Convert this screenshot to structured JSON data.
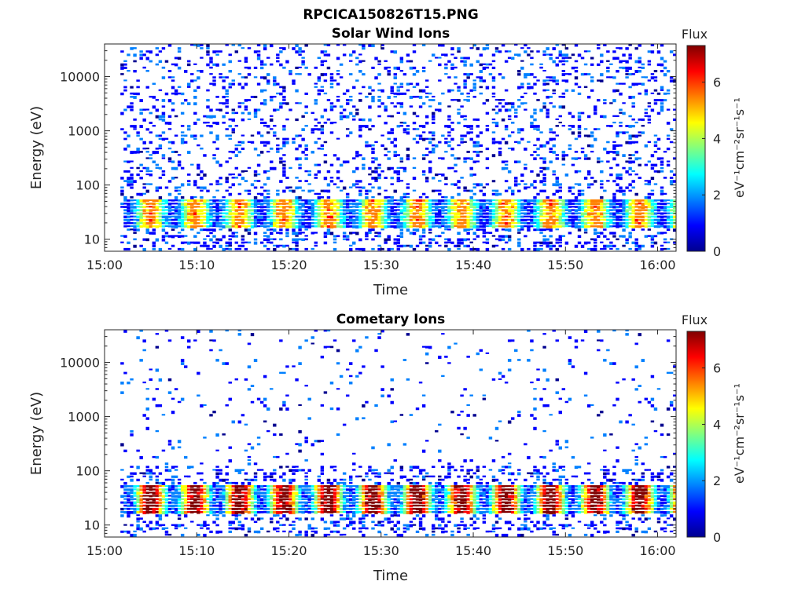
{
  "figure_title": "RPCICA150826T15.PNG",
  "colormap": [
    "#00008f",
    "#0000ff",
    "#0080ff",
    "#00ffff",
    "#80ff80",
    "#ffff00",
    "#ff8000",
    "#ff0000",
    "#800000"
  ],
  "chart_data": [
    {
      "type": "heatmap",
      "title": "Solar Wind Ions",
      "xlabel": "Time",
      "ylabel": "Energy (eV)",
      "x_ticks": [
        "15:00",
        "15:10",
        "15:20",
        "15:30",
        "15:40",
        "15:50",
        "16:00"
      ],
      "x_range": [
        "15:00",
        "16:02"
      ],
      "y_scale": "log",
      "y_ticks": [
        "10",
        "100",
        "1000",
        "10000"
      ],
      "y_range": [
        6,
        40000
      ],
      "colorbar": {
        "title": "Flux",
        "label": "eV⁻¹cm⁻²sr⁻¹s⁻¹",
        "ticks": [
          "0",
          "2",
          "4",
          "6"
        ],
        "range": [
          0,
          7.3
        ]
      },
      "band_energy_eV": [
        20,
        50
      ],
      "band_peak_flux": 5,
      "background_flux": 1
    },
    {
      "type": "heatmap",
      "title": "Cometary Ions",
      "xlabel": "Time",
      "ylabel": "Energy (eV)",
      "x_ticks": [
        "15:00",
        "15:10",
        "15:20",
        "15:30",
        "15:40",
        "15:50",
        "16:00"
      ],
      "x_range": [
        "15:00",
        "16:02"
      ],
      "y_scale": "log",
      "y_ticks": [
        "10",
        "100",
        "1000",
        "10000"
      ],
      "y_range": [
        6,
        40000
      ],
      "colorbar": {
        "title": "Flux",
        "label": "eV⁻¹cm⁻²sr⁻¹s⁻¹",
        "ticks": [
          "0",
          "2",
          "4",
          "6"
        ],
        "range": [
          0,
          7.3
        ]
      },
      "band_energy_eV": [
        20,
        50
      ],
      "band_peak_flux": 7,
      "background_flux": 1
    }
  ]
}
